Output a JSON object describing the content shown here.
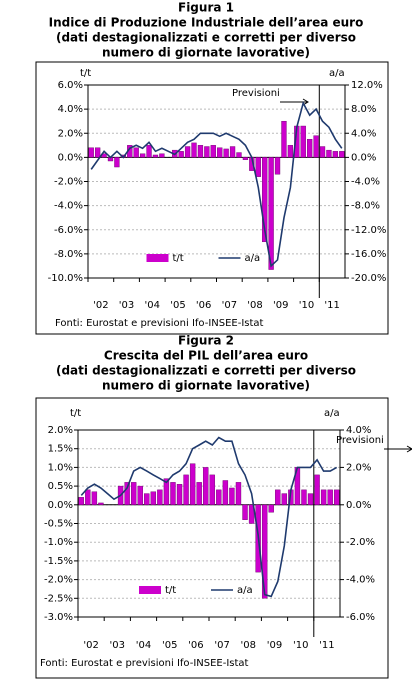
{
  "chart_data": [
    {
      "type": "bar-line",
      "figure": "Figura 1",
      "title": "Indice di Produzione Industriale dell’area euro",
      "subtitle": [
        "(dati destagionalizzati e corretti per diverso",
        "numero di giornate lavorative)"
      ],
      "y_label": "t/t",
      "y2_label": "a/a",
      "annotation": "Previsioni",
      "source": "Fonti: Eurostat e previsioni Ifo-INSEE-Istat",
      "legend": "lower center",
      "grid": true,
      "categories": [
        "'02",
        null,
        null,
        null,
        "'03",
        null,
        null,
        null,
        "'04",
        null,
        null,
        null,
        "'05",
        null,
        null,
        null,
        "'06",
        null,
        null,
        null,
        "'07",
        null,
        null,
        null,
        "'08",
        null,
        null,
        null,
        "'09",
        null,
        null,
        null,
        "'10",
        null,
        null,
        null,
        "'11",
        null,
        null,
        null
      ],
      "series": [
        {
          "name": "t/t",
          "type": "bar",
          "color": "#cc00cc",
          "values": [
            0.8,
            0.8,
            0.3,
            -0.3,
            -0.8,
            0.2,
            1.0,
            0.8,
            0.3,
            1.0,
            0.2,
            0.3,
            0.0,
            0.6,
            0.5,
            0.9,
            1.2,
            1.0,
            0.9,
            1.0,
            0.8,
            0.7,
            0.9,
            0.4,
            -0.2,
            -1.1,
            -1.6,
            -7.0,
            -9.3,
            -1.4,
            3.0,
            1.0,
            2.6,
            2.6,
            1.5,
            1.8,
            0.9,
            0.6,
            0.5,
            0.5
          ]
        },
        {
          "name": "a/a",
          "type": "line",
          "axis": "y2",
          "color": "#1f3a6e",
          "values": [
            -2,
            -0.5,
            1,
            0,
            1,
            0,
            1.5,
            2,
            1.5,
            2.5,
            1,
            1.5,
            1,
            0.5,
            1.5,
            2.5,
            3,
            4,
            4,
            4,
            3.5,
            4,
            3.5,
            3,
            2,
            0,
            -5,
            -12,
            -18,
            -17,
            -10,
            -5,
            5,
            9,
            7,
            8,
            6,
            5,
            3,
            1.5
          ]
        }
      ],
      "ylim": [
        -10,
        6
      ],
      "yticks": [
        {
          "value": -10,
          "label": "-10.0%"
        },
        {
          "value": -8,
          "label": "-8.0%"
        },
        {
          "value": -6,
          "label": "-6.0%"
        },
        {
          "value": -4,
          "label": "-4.0%"
        },
        {
          "value": -2,
          "label": "-2.0%"
        },
        {
          "value": 0,
          "label": "0.0%"
        },
        {
          "value": 2,
          "label": "2.0%"
        },
        {
          "value": 4,
          "label": "4.0%"
        },
        {
          "value": 6,
          "label": "6.0%"
        }
      ],
      "y2lim": [
        -20,
        12
      ],
      "y2ticks": [
        {
          "value": -20,
          "label": "-20.0%"
        },
        {
          "value": -16,
          "label": "-16.0%"
        },
        {
          "value": -12,
          "label": "-12.0%"
        },
        {
          "value": -8,
          "label": "-8.0%"
        },
        {
          "value": -4,
          "label": "-4.0%"
        },
        {
          "value": 0,
          "label": "0.0%"
        },
        {
          "value": 4,
          "label": "4.0%"
        },
        {
          "value": 8,
          "label": "8.0%"
        },
        {
          "value": 12,
          "label": "12.0%"
        }
      ]
    },
    {
      "type": "bar-line",
      "figure": "Figura 2",
      "title": "Crescita del PIL dell’area euro",
      "subtitle": [
        "(dati destagionalizzati e corretti per diverso",
        "numero di giornate lavorative)"
      ],
      "y_label": "t/t",
      "y2_label": "a/a",
      "annotation": "Previsioni",
      "source": "Fonti: Eurostat e previsioni Ifo-INSEE-Istat",
      "legend": "lower center",
      "grid": true,
      "categories": [
        "'02",
        null,
        null,
        null,
        "'03",
        null,
        null,
        null,
        "'04",
        null,
        null,
        null,
        "'05",
        null,
        null,
        null,
        "'06",
        null,
        null,
        null,
        "'07",
        null,
        null,
        null,
        "'08",
        null,
        null,
        null,
        "'09",
        null,
        null,
        null,
        "'10",
        null,
        null,
        null,
        "'11",
        null,
        null,
        null
      ],
      "series": [
        {
          "name": "t/t",
          "type": "bar",
          "color": "#cc00cc",
          "values": [
            0.2,
            0.4,
            0.35,
            0.05,
            0.0,
            0.0,
            0.5,
            0.6,
            0.6,
            0.5,
            0.3,
            0.35,
            0.4,
            0.7,
            0.6,
            0.55,
            0.8,
            1.1,
            0.6,
            1.0,
            0.8,
            0.4,
            0.65,
            0.45,
            0.6,
            -0.4,
            -0.5,
            -1.8,
            -2.5,
            -0.2,
            0.4,
            0.3,
            0.4,
            1.0,
            0.4,
            0.3,
            0.8,
            0.4,
            0.4,
            0.4
          ]
        },
        {
          "name": "a/a",
          "type": "line",
          "axis": "y2",
          "color": "#1f3a6e",
          "values": [
            0.5,
            0.9,
            1.1,
            0.9,
            0.6,
            0.3,
            0.5,
            0.9,
            1.8,
            2.0,
            1.8,
            1.6,
            1.4,
            1.2,
            1.6,
            1.8,
            2.2,
            3.0,
            3.2,
            3.4,
            3.2,
            3.6,
            3.4,
            3.4,
            2.2,
            1.6,
            0.6,
            -1.6,
            -4.8,
            -4.9,
            -4.1,
            -2.2,
            0.8,
            2.0,
            2.0,
            2.0,
            2.4,
            1.8,
            1.8,
            2.0
          ]
        }
      ],
      "ylim": [
        -3,
        2
      ],
      "yticks": [
        {
          "value": -3,
          "label": "-3.0%"
        },
        {
          "value": -2.5,
          "label": "-2.5%"
        },
        {
          "value": -2,
          "label": "-2.0%"
        },
        {
          "value": -1.5,
          "label": "-1.5%"
        },
        {
          "value": -1,
          "label": "-1.0%"
        },
        {
          "value": -0.5,
          "label": "-0.5%"
        },
        {
          "value": 0,
          "label": "0.0%"
        },
        {
          "value": 0.5,
          "label": "0.5%"
        },
        {
          "value": 1,
          "label": "1.0%"
        },
        {
          "value": 1.5,
          "label": "1.5%"
        },
        {
          "value": 2,
          "label": "2.0%"
        }
      ],
      "y2lim": [
        -6,
        4
      ],
      "y2ticks": [
        {
          "value": -6,
          "label": "-6.0%"
        },
        {
          "value": -4,
          "label": "-4.0%"
        },
        {
          "value": -2,
          "label": "-2.0%"
        },
        {
          "value": 0,
          "label": "0.0%"
        },
        {
          "value": 2,
          "label": "2.0%"
        },
        {
          "value": 4,
          "label": "4.0%"
        }
      ]
    }
  ]
}
